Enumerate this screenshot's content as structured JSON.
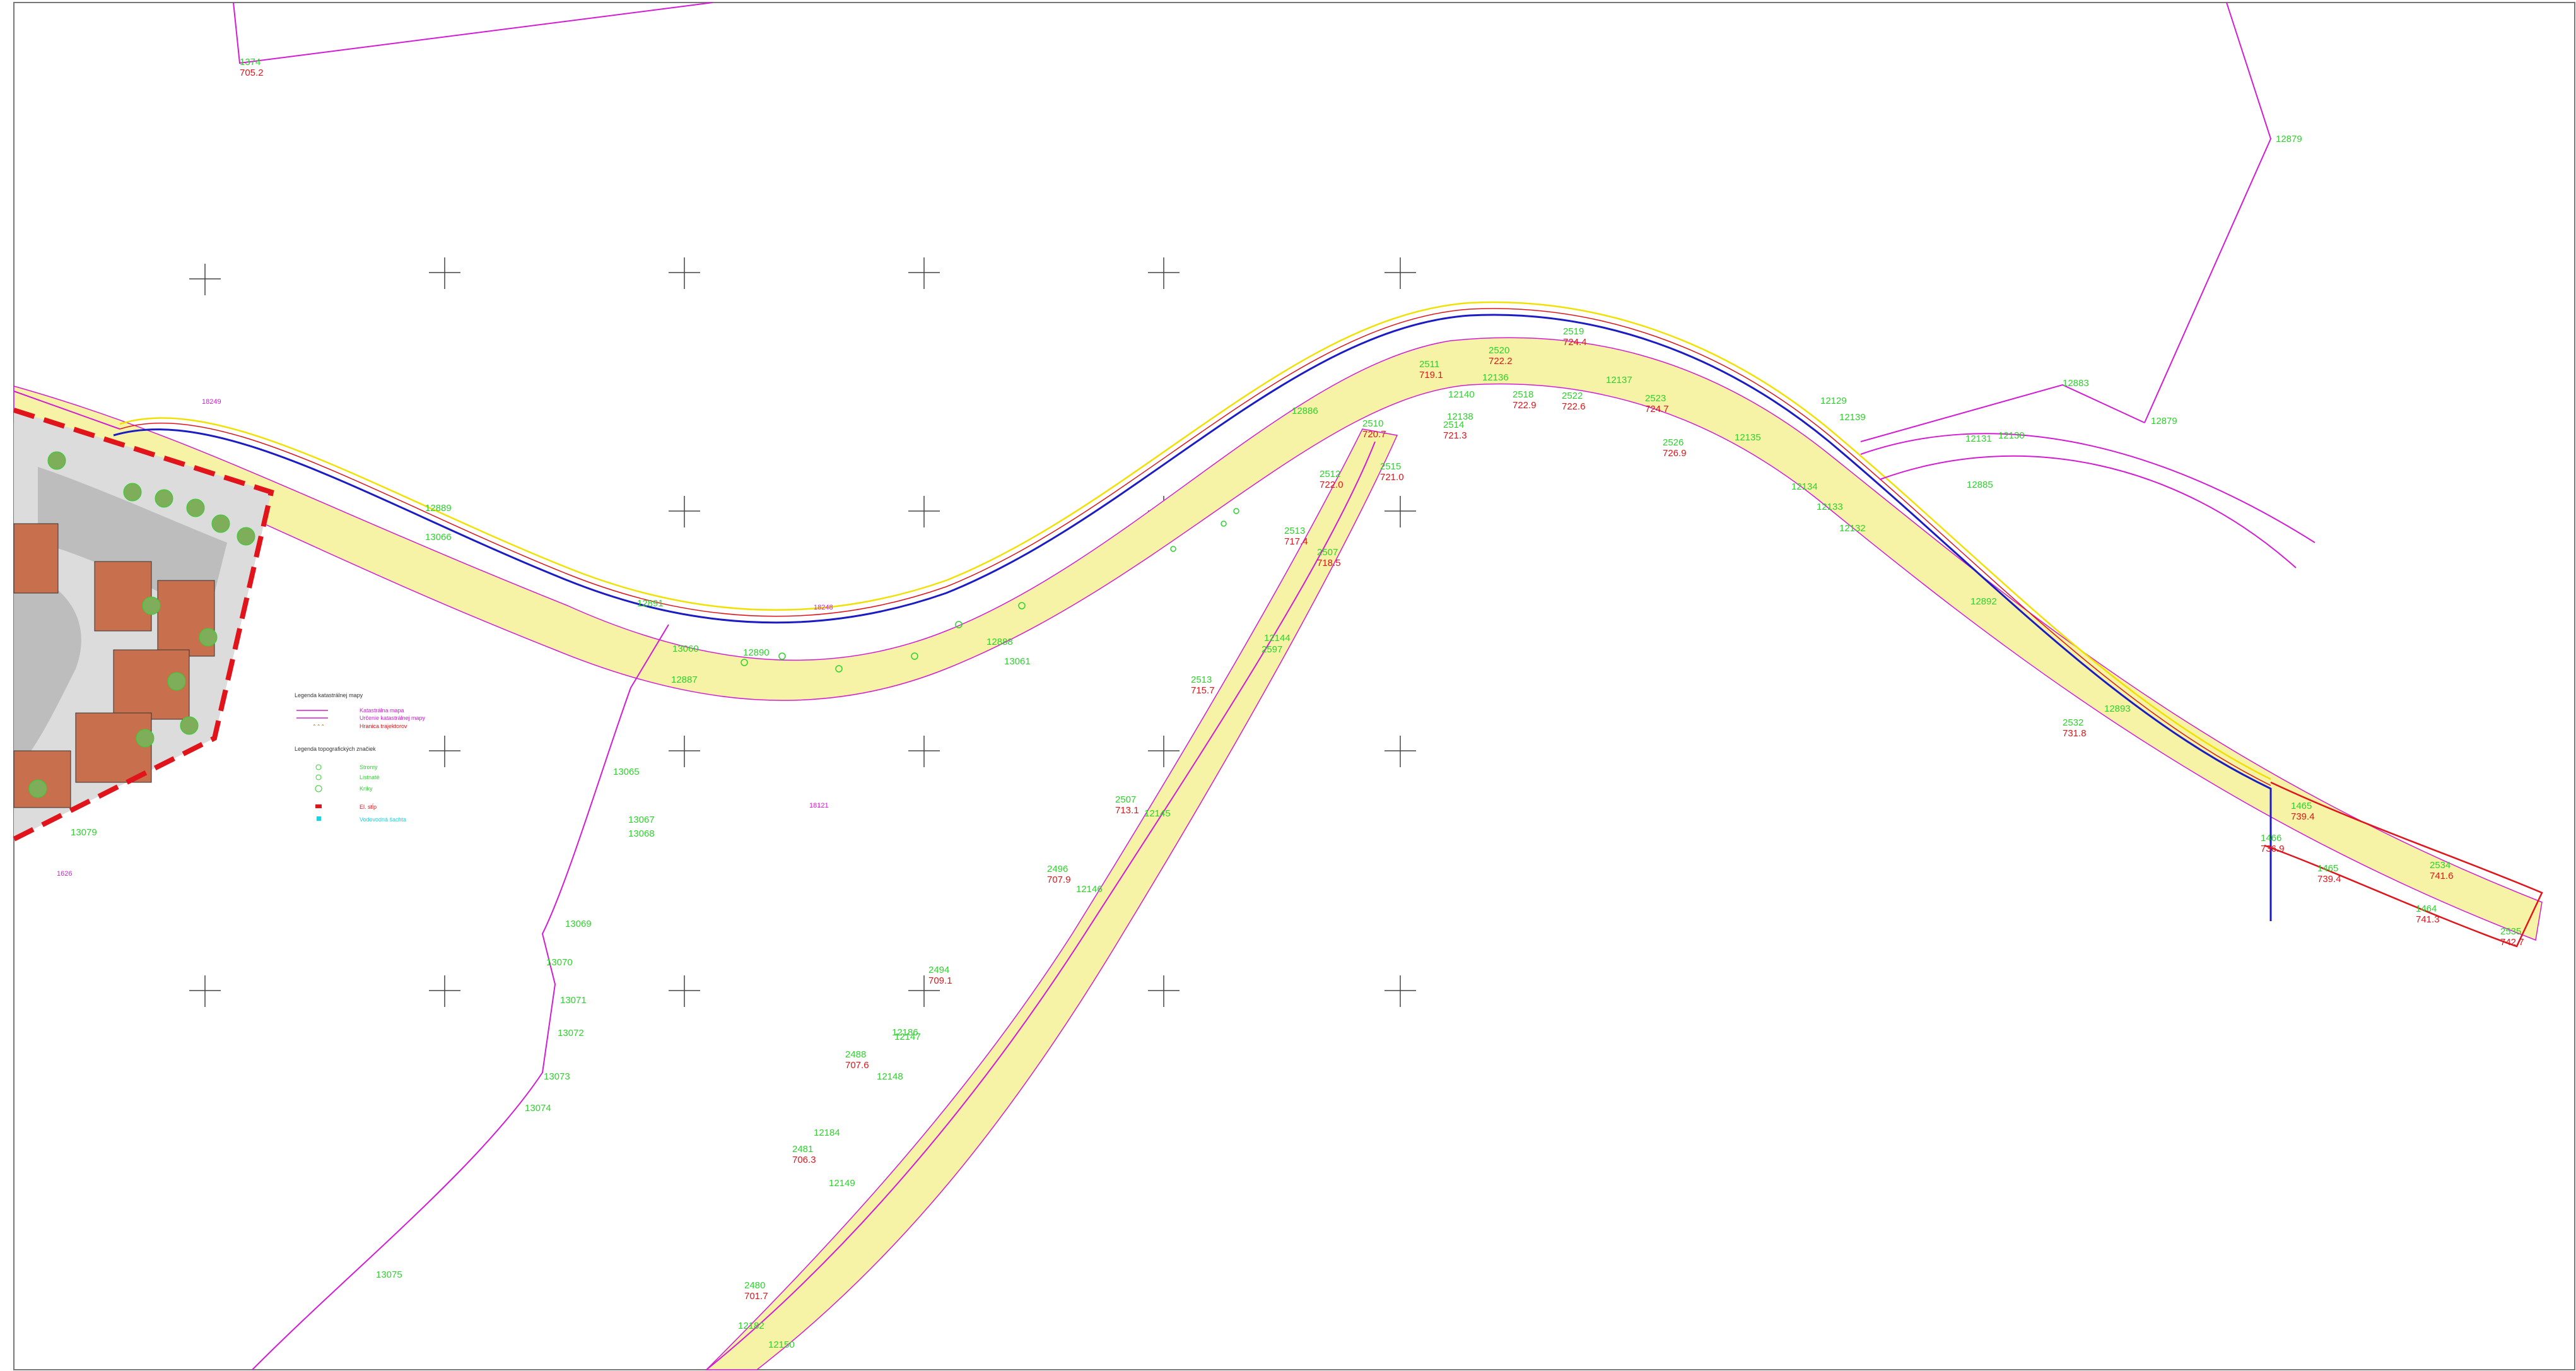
{
  "map": {
    "road_label_a": "18249",
    "road_label_b": "18248",
    "road_label_c": "18121",
    "road_label_d": "1626"
  },
  "legend": {
    "title_lines": "Legenda katastrálnej mapy",
    "items": [
      {
        "label": "Katastrálna mapa",
        "color": "#d41bd4"
      },
      {
        "label": "Určenie katastrálnej mapy",
        "color": "#d41bd4"
      },
      {
        "label": "Hranica trajektorov",
        "color": "#e0141a"
      }
    ],
    "title_symbols": "Legenda topografických značiek",
    "symbol_items": [
      {
        "label": "Stromy",
        "color": "#2fd12f"
      },
      {
        "label": "Listnaté",
        "color": "#2fd12f"
      },
      {
        "label": "Kríky",
        "color": "#2fd12f"
      },
      {
        "label": "El. stĺp",
        "color": "#e0141a"
      },
      {
        "label": "Vodovodná šachta",
        "color": "#18d3e0"
      }
    ]
  },
  "parcels": [
    {
      "id": "1374",
      "h": "705.2"
    },
    {
      "id": "12879",
      "h": ""
    },
    {
      "id": "12883",
      "h": ""
    },
    {
      "id": "12879",
      "h": ""
    },
    {
      "id": "2519",
      "h": "724.4"
    },
    {
      "id": "2520",
      "h": "722.2"
    },
    {
      "id": "2518",
      "h": "722.9"
    },
    {
      "id": "2522",
      "h": "722.6"
    },
    {
      "id": "2523",
      "h": "724.7"
    },
    {
      "id": "2526",
      "h": "726.9"
    },
    {
      "id": "12137",
      "h": ""
    },
    {
      "id": "12136",
      "h": ""
    },
    {
      "id": "12135",
      "h": ""
    },
    {
      "id": "12134",
      "h": ""
    },
    {
      "id": "12133",
      "h": ""
    },
    {
      "id": "12132",
      "h": ""
    },
    {
      "id": "12139",
      "h": ""
    },
    {
      "id": "12140",
      "h": ""
    },
    {
      "id": "12138",
      "h": ""
    },
    {
      "id": "2515",
      "h": "721.0"
    },
    {
      "id": "2514",
      "h": "721.3"
    },
    {
      "id": "2510",
      "h": "720.7"
    },
    {
      "id": "2511",
      "h": "719.1"
    },
    {
      "id": "2512",
      "h": "722.0"
    },
    {
      "id": "2513",
      "h": "717.4"
    },
    {
      "id": "2507",
      "h": "718.5"
    },
    {
      "id": "12144",
      "h": ""
    },
    {
      "id": "2597",
      "h": ""
    },
    {
      "id": "2513",
      "h": "715.7"
    },
    {
      "id": "2507",
      "h": "713.1"
    },
    {
      "id": "12145",
      "h": ""
    },
    {
      "id": "2496",
      "h": "707.9"
    },
    {
      "id": "12146",
      "h": ""
    },
    {
      "id": "2494",
      "h": "709.1"
    },
    {
      "id": "12147",
      "h": ""
    },
    {
      "id": "12186",
      "h": ""
    },
    {
      "id": "2488",
      "h": "707.6"
    },
    {
      "id": "12148",
      "h": ""
    },
    {
      "id": "12184",
      "h": ""
    },
    {
      "id": "2481",
      "h": "706.3"
    },
    {
      "id": "12149",
      "h": ""
    },
    {
      "id": "2480",
      "h": "701.7"
    },
    {
      "id": "12182",
      "h": ""
    },
    {
      "id": "12150",
      "h": ""
    },
    {
      "id": "2532",
      "h": "731.8"
    },
    {
      "id": "1465",
      "h": "739.4"
    },
    {
      "id": "1466",
      "h": "736.9"
    },
    {
      "id": "1465",
      "h": "739.4"
    },
    {
      "id": "2534",
      "h": "741.6"
    },
    {
      "id": "1464",
      "h": "741.3"
    },
    {
      "id": "2535",
      "h": "742.7"
    },
    {
      "id": "13065",
      "h": ""
    },
    {
      "id": "13067",
      "h": ""
    },
    {
      "id": "13068",
      "h": ""
    },
    {
      "id": "13069",
      "h": ""
    },
    {
      "id": "13070",
      "h": ""
    },
    {
      "id": "13071",
      "h": ""
    },
    {
      "id": "13072",
      "h": ""
    },
    {
      "id": "13073",
      "h": ""
    },
    {
      "id": "13074",
      "h": ""
    },
    {
      "id": "13075",
      "h": ""
    },
    {
      "id": "13079",
      "h": ""
    },
    {
      "id": "12891",
      "h": ""
    },
    {
      "id": "12890",
      "h": ""
    },
    {
      "id": "13060",
      "h": ""
    },
    {
      "id": "12888",
      "h": ""
    },
    {
      "id": "13061",
      "h": ""
    },
    {
      "id": "12887",
      "h": ""
    },
    {
      "id": "12886",
      "h": ""
    },
    {
      "id": "12889",
      "h": ""
    },
    {
      "id": "12885",
      "h": ""
    },
    {
      "id": "12892",
      "h": ""
    },
    {
      "id": "13066",
      "h": ""
    },
    {
      "id": "12893",
      "h": ""
    },
    {
      "id": "12131",
      "h": ""
    },
    {
      "id": "12130",
      "h": ""
    },
    {
      "id": "12129",
      "h": ""
    }
  ],
  "colors": {
    "road_fill": "#f7f3a6",
    "parcel_line": "#d41bd4",
    "road_axis_blue": "#1c1cc4",
    "road_axis_red": "#e0141a",
    "boundary_red_dash": "#e0141a",
    "building": "#c8704d",
    "paved": "#bdbdbd"
  }
}
